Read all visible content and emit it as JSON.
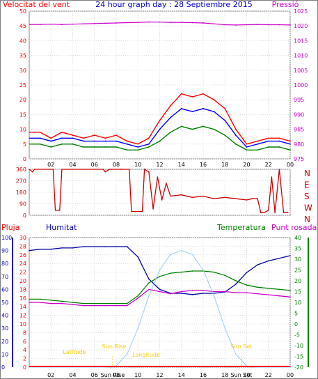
{
  "page": {
    "title": "24 hour graph day : 28 Septiembre 2015",
    "background": "#ffffff",
    "plot_background": "#ffffff",
    "frame_color": "#808080"
  },
  "colors": {
    "wind": "#ff0000",
    "wind_avg": "#008000",
    "wind_gust_avg": "#0000ff",
    "pressure": "#cc00cc",
    "direction": "#cc0000",
    "rain": "#ff0000",
    "humidity": "#0000aa",
    "temperature": "#008000",
    "dewpoint": "#cc00cc",
    "solar": "#99ccff",
    "sun_labels": "#ffcc00",
    "axis_left1": "#ff0000",
    "axis_left2": "#0000cc",
    "axis_right_pressure": "#cc00cc",
    "axis_right_temp": "#008000"
  },
  "x_ticks": [
    "02",
    "04",
    "06",
    "08",
    "10",
    "12",
    "14",
    "16",
    "18",
    "20",
    "22",
    "00"
  ],
  "chart_data": [
    {
      "type": "line",
      "id": "wind_pressure",
      "title": "24 hour graph day : 28 Septiembre 2015",
      "left_axis_label": "Velocitat del vent",
      "right_axis_label": "Pressió",
      "ylim_left": [
        0,
        50
      ],
      "left_ticks": [
        "0",
        "5",
        "10",
        "15",
        "20",
        "25",
        "30",
        "35",
        "40",
        "45",
        "50"
      ],
      "ylim_right": [
        975,
        1025
      ],
      "right_ticks": [
        "975",
        "980",
        "985",
        "990",
        "995",
        "1000",
        "1005",
        "1010",
        "1015",
        "1020",
        "1025"
      ],
      "x_hours": [
        1,
        2,
        3,
        4,
        5,
        6,
        7,
        8,
        9,
        10,
        11,
        12,
        13,
        14,
        15,
        16,
        17,
        18,
        19,
        20,
        21,
        22,
        23,
        24
      ],
      "series": [
        {
          "key": "gust",
          "values": [
            9,
            7,
            9,
            8,
            7,
            8,
            7,
            8,
            6,
            5,
            7,
            13,
            18,
            22,
            21,
            22,
            20,
            17,
            10,
            5,
            6,
            7,
            7,
            6
          ]
        },
        {
          "key": "wind_avg",
          "values": [
            5,
            4,
            5,
            5,
            4,
            4,
            4,
            4,
            3,
            3,
            4,
            6,
            9,
            11,
            10,
            11,
            10,
            8,
            5,
            3,
            3,
            4,
            4,
            3
          ]
        },
        {
          "key": "wind_gust_avg",
          "values": [
            7,
            6,
            7,
            7,
            6,
            6,
            6,
            6,
            5,
            4,
            5,
            10,
            14,
            17,
            16,
            17,
            16,
            13,
            8,
            4,
            5,
            6,
            6,
            5
          ]
        },
        {
          "key": "pressure",
          "values": [
            1020.5,
            1020.6,
            1020.5,
            1020.6,
            1020.7,
            1020.8,
            1020.9,
            1021.0,
            1021.1,
            1021.2,
            1021.3,
            1021.3,
            1021.2,
            1021.2,
            1021.1,
            1021.0,
            1020.7,
            1020.4,
            1020.3,
            1020.4,
            1020.5,
            1020.4,
            1020.4,
            1020.3
          ]
        }
      ]
    },
    {
      "type": "line",
      "id": "wind_direction",
      "ylim": [
        0,
        360
      ],
      "ticks": [
        "0",
        "90",
        "180",
        "270",
        "360"
      ],
      "compass": [
        "N",
        "W",
        "S",
        "E",
        "N"
      ],
      "x_hours": [
        0,
        0.3,
        0.5,
        2.2,
        2.4,
        2.8,
        3.0,
        6.8,
        7.0,
        7.4,
        7.6,
        8.4,
        8.6,
        9.2,
        9.4,
        9.8,
        10.0,
        10.4,
        10.6,
        11.0,
        11.4,
        11.8,
        12.2,
        12.6,
        13.0,
        14.0,
        15.0,
        16.0,
        17.0,
        18.0,
        19.0,
        20.0,
        20.5,
        21.0,
        21.3,
        21.6,
        22.0,
        22.3,
        22.6,
        23.0,
        23.4,
        23.8
      ],
      "values": [
        360,
        340,
        360,
        360,
        40,
        40,
        360,
        360,
        340,
        360,
        360,
        360,
        360,
        360,
        30,
        30,
        30,
        30,
        360,
        340,
        50,
        300,
        120,
        250,
        150,
        160,
        140,
        150,
        130,
        140,
        130,
        120,
        130,
        130,
        20,
        20,
        40,
        300,
        20,
        360,
        20,
        20
      ]
    },
    {
      "type": "line",
      "id": "temp_humidity",
      "legend": [
        "Pluja",
        "Humitat",
        "Temperatura",
        "Punt rosada"
      ],
      "ylim_humidity": [
        0,
        100
      ],
      "humidity_ticks": [
        "0",
        "10",
        "20",
        "30",
        "40",
        "50",
        "60",
        "70",
        "80",
        "90",
        "100"
      ],
      "ylim_rain": [
        0,
        30
      ],
      "rain_ticks": [
        "0",
        "2",
        "4",
        "6",
        "8",
        "10",
        "12",
        "14",
        "16",
        "18",
        "20",
        "22",
        "24",
        "26",
        "28",
        "30"
      ],
      "ylim_temp": [
        -20,
        40
      ],
      "temp_ticks": [
        "-20",
        "-15",
        "-10",
        "-5",
        "0",
        "5",
        "10",
        "15",
        "20",
        "25",
        "30",
        "35",
        "40"
      ],
      "x_hours": [
        0,
        1,
        2,
        3,
        4,
        5,
        6,
        7,
        8,
        9,
        10,
        11,
        12,
        13,
        14,
        15,
        16,
        17,
        18,
        19,
        20,
        21,
        22,
        23,
        24
      ],
      "series": [
        {
          "key": "humidity",
          "values": [
            90,
            91,
            91,
            92,
            92,
            93,
            93,
            93,
            93,
            93,
            85,
            68,
            60,
            57,
            57,
            56,
            57,
            57,
            58,
            64,
            73,
            79,
            82,
            84,
            86
          ]
        },
        {
          "key": "temperature",
          "values": [
            11.5,
            11.5,
            11,
            10.5,
            10,
            9.5,
            9.5,
            9.5,
            9.5,
            9.5,
            13,
            19,
            22,
            23.5,
            24,
            24.5,
            24.5,
            24,
            22.5,
            20,
            18,
            17,
            16.5,
            16,
            15.5
          ]
        },
        {
          "key": "dewpoint",
          "values": [
            10,
            10,
            9.5,
            9.5,
            9,
            8.5,
            8.5,
            8.5,
            8.5,
            8.5,
            12,
            16,
            15,
            14,
            15,
            15.5,
            15.5,
            15,
            15,
            14.5,
            14.5,
            14,
            13.5,
            13,
            12.5
          ]
        },
        {
          "key": "solar",
          "values": [
            0,
            0,
            0,
            0,
            0,
            0,
            0,
            0,
            1,
            10,
            30,
            55,
            75,
            87,
            90,
            87,
            75,
            55,
            30,
            10,
            1,
            0,
            0,
            0,
            0
          ]
        }
      ],
      "rain_values": [
        0,
        0,
        0,
        0,
        0,
        0,
        0,
        0,
        0,
        0,
        0,
        0,
        0,
        0,
        0,
        0,
        0,
        0,
        0,
        0,
        0,
        0,
        0,
        0,
        0
      ]
    }
  ],
  "sun": {
    "sun_rise_label": "Sun Rise",
    "sun_set_label": "Sun Set",
    "latitude_label": "Latitude",
    "longitude_label": "Longitude",
    "sun_rise_tick": "Sun Rise",
    "sun_set_tick": "Sun Set"
  }
}
